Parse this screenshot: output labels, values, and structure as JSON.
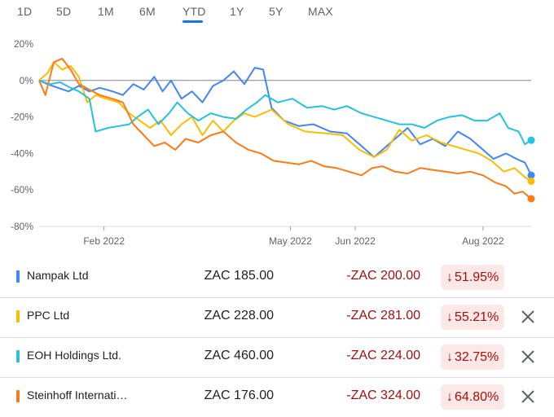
{
  "tabs": {
    "items": [
      "1D",
      "5D",
      "1M",
      "6M",
      "YTD",
      "1Y",
      "5Y",
      "MAX"
    ],
    "active": 4
  },
  "chart_data": {
    "type": "line",
    "x_range": [
      "2022-01-01",
      "2022-08-24"
    ],
    "ylim": [
      -80,
      20
    ],
    "y_ticks": [
      20,
      0,
      -20,
      -40,
      -60,
      -80
    ],
    "y_tick_labels": [
      "20%",
      "0%",
      "-20%",
      "-40%",
      "-60%",
      "-80%"
    ],
    "x_ticks": [
      "2022-02-01",
      "2022-05-01",
      "2022-06-01",
      "2022-08-01"
    ],
    "x_tick_labels": [
      "Feb 2022",
      "May 2022",
      "Jun 2022",
      "Aug 2022"
    ],
    "reference_line": 0,
    "grid": false,
    "series": [
      {
        "name": "Nampak Ltd",
        "color": "#4285f4",
        "points": [
          [
            "2022-01-01",
            0
          ],
          [
            "2022-01-05",
            -2
          ],
          [
            "2022-01-10",
            -4
          ],
          [
            "2022-01-15",
            -6
          ],
          [
            "2022-01-20",
            -3
          ],
          [
            "2022-01-25",
            -6
          ],
          [
            "2022-01-30",
            -4
          ],
          [
            "2022-02-05",
            -6
          ],
          [
            "2022-02-10",
            -8
          ],
          [
            "2022-02-15",
            -2
          ],
          [
            "2022-02-20",
            -5
          ],
          [
            "2022-02-25",
            2
          ],
          [
            "2022-03-01",
            -6
          ],
          [
            "2022-03-05",
            0
          ],
          [
            "2022-03-10",
            -10
          ],
          [
            "2022-03-15",
            -6
          ],
          [
            "2022-03-20",
            -12
          ],
          [
            "2022-03-25",
            -3
          ],
          [
            "2022-03-30",
            0
          ],
          [
            "2022-04-04",
            5
          ],
          [
            "2022-04-09",
            -2
          ],
          [
            "2022-04-14",
            7
          ],
          [
            "2022-04-18",
            6
          ],
          [
            "2022-04-22",
            -15
          ],
          [
            "2022-04-28",
            -22
          ],
          [
            "2022-05-05",
            -25
          ],
          [
            "2022-05-12",
            -24
          ],
          [
            "2022-05-20",
            -28
          ],
          [
            "2022-05-28",
            -29
          ],
          [
            "2022-06-04",
            -36
          ],
          [
            "2022-06-10",
            -42
          ],
          [
            "2022-06-16",
            -36
          ],
          [
            "2022-06-22",
            -30
          ],
          [
            "2022-06-26",
            -26
          ],
          [
            "2022-07-02",
            -35
          ],
          [
            "2022-07-08",
            -32
          ],
          [
            "2022-07-14",
            -36
          ],
          [
            "2022-07-20",
            -28
          ],
          [
            "2022-07-26",
            -32
          ],
          [
            "2022-08-01",
            -38
          ],
          [
            "2022-08-06",
            -43
          ],
          [
            "2022-08-12",
            -40
          ],
          [
            "2022-08-17",
            -43
          ],
          [
            "2022-08-21",
            -45
          ],
          [
            "2022-08-24",
            -51.95
          ]
        ]
      },
      {
        "name": "PPC Ltd",
        "color": "#fbbc04",
        "points": [
          [
            "2022-01-01",
            0
          ],
          [
            "2022-01-05",
            4
          ],
          [
            "2022-01-08",
            10
          ],
          [
            "2022-01-12",
            6
          ],
          [
            "2022-01-16",
            8
          ],
          [
            "2022-01-20",
            2
          ],
          [
            "2022-01-24",
            -12
          ],
          [
            "2022-01-28",
            -8
          ],
          [
            "2022-02-02",
            -10
          ],
          [
            "2022-02-08",
            -12
          ],
          [
            "2022-02-13",
            -18
          ],
          [
            "2022-02-18",
            -22
          ],
          [
            "2022-02-23",
            -26
          ],
          [
            "2022-02-28",
            -22
          ],
          [
            "2022-03-05",
            -30
          ],
          [
            "2022-03-10",
            -24
          ],
          [
            "2022-03-15",
            -20
          ],
          [
            "2022-03-20",
            -30
          ],
          [
            "2022-03-25",
            -22
          ],
          [
            "2022-03-30",
            -28
          ],
          [
            "2022-04-04",
            -22
          ],
          [
            "2022-04-09",
            -18
          ],
          [
            "2022-04-14",
            -20
          ],
          [
            "2022-04-22",
            -16
          ],
          [
            "2022-04-30",
            -24
          ],
          [
            "2022-05-08",
            -28
          ],
          [
            "2022-05-18",
            -29
          ],
          [
            "2022-05-26",
            -30
          ],
          [
            "2022-06-03",
            -38
          ],
          [
            "2022-06-10",
            -42
          ],
          [
            "2022-06-16",
            -38
          ],
          [
            "2022-06-22",
            -27
          ],
          [
            "2022-06-28",
            -33
          ],
          [
            "2022-07-05",
            -30
          ],
          [
            "2022-07-12",
            -34
          ],
          [
            "2022-07-18",
            -36
          ],
          [
            "2022-07-24",
            -38
          ],
          [
            "2022-07-30",
            -40
          ],
          [
            "2022-08-05",
            -44
          ],
          [
            "2022-08-11",
            -50
          ],
          [
            "2022-08-16",
            -48
          ],
          [
            "2022-08-21",
            -53
          ],
          [
            "2022-08-24",
            -55.21
          ]
        ]
      },
      {
        "name": "EOH Holdings Ltd.",
        "color": "#24c1e0",
        "points": [
          [
            "2022-01-01",
            0
          ],
          [
            "2022-01-06",
            -2
          ],
          [
            "2022-01-11",
            -1
          ],
          [
            "2022-01-16",
            -4
          ],
          [
            "2022-01-20",
            -6
          ],
          [
            "2022-01-25",
            -10
          ],
          [
            "2022-01-28",
            -28
          ],
          [
            "2022-02-03",
            -26
          ],
          [
            "2022-02-08",
            -25
          ],
          [
            "2022-02-13",
            -24
          ],
          [
            "2022-02-17",
            -20
          ],
          [
            "2022-02-22",
            -16
          ],
          [
            "2022-02-27",
            -24
          ],
          [
            "2022-03-04",
            -18
          ],
          [
            "2022-03-08",
            -12
          ],
          [
            "2022-03-13",
            -18
          ],
          [
            "2022-03-18",
            -22
          ],
          [
            "2022-03-24",
            -18
          ],
          [
            "2022-03-30",
            -20
          ],
          [
            "2022-04-05",
            -21
          ],
          [
            "2022-04-10",
            -16
          ],
          [
            "2022-04-15",
            -12
          ],
          [
            "2022-04-19",
            -8
          ],
          [
            "2022-04-25",
            -12
          ],
          [
            "2022-05-02",
            -10
          ],
          [
            "2022-05-09",
            -15
          ],
          [
            "2022-05-16",
            -14
          ],
          [
            "2022-05-22",
            -16
          ],
          [
            "2022-05-28",
            -14
          ],
          [
            "2022-06-04",
            -18
          ],
          [
            "2022-06-10",
            -20
          ],
          [
            "2022-06-16",
            -22
          ],
          [
            "2022-06-22",
            -24
          ],
          [
            "2022-06-28",
            -24
          ],
          [
            "2022-07-04",
            -26
          ],
          [
            "2022-07-10",
            -22
          ],
          [
            "2022-07-16",
            -20
          ],
          [
            "2022-07-22",
            -19
          ],
          [
            "2022-07-28",
            -22
          ],
          [
            "2022-08-03",
            -22
          ],
          [
            "2022-08-09",
            -18
          ],
          [
            "2022-08-13",
            -26
          ],
          [
            "2022-08-18",
            -28
          ],
          [
            "2022-08-21",
            -35
          ],
          [
            "2022-08-24",
            -32.75
          ]
        ]
      },
      {
        "name": "Steinhoff Internati…",
        "color": "#fa7b17",
        "points": [
          [
            "2022-01-01",
            0
          ],
          [
            "2022-01-04",
            -8
          ],
          [
            "2022-01-08",
            10
          ],
          [
            "2022-01-12",
            12
          ],
          [
            "2022-01-16",
            6
          ],
          [
            "2022-01-20",
            -2
          ],
          [
            "2022-01-25",
            -5
          ],
          [
            "2022-01-30",
            -8
          ],
          [
            "2022-02-05",
            -10
          ],
          [
            "2022-02-10",
            -12
          ],
          [
            "2022-02-15",
            -24
          ],
          [
            "2022-02-20",
            -30
          ],
          [
            "2022-02-25",
            -36
          ],
          [
            "2022-03-02",
            -34
          ],
          [
            "2022-03-07",
            -38
          ],
          [
            "2022-03-12",
            -32
          ],
          [
            "2022-03-18",
            -34
          ],
          [
            "2022-03-24",
            -30
          ],
          [
            "2022-03-30",
            -28
          ],
          [
            "2022-04-05",
            -34
          ],
          [
            "2022-04-11",
            -38
          ],
          [
            "2022-04-17",
            -40
          ],
          [
            "2022-04-23",
            -44
          ],
          [
            "2022-04-29",
            -45
          ],
          [
            "2022-05-05",
            -46
          ],
          [
            "2022-05-11",
            -44
          ],
          [
            "2022-05-17",
            -47
          ],
          [
            "2022-05-23",
            -48
          ],
          [
            "2022-05-29",
            -50
          ],
          [
            "2022-06-04",
            -52
          ],
          [
            "2022-06-09",
            -48
          ],
          [
            "2022-06-14",
            -47
          ],
          [
            "2022-06-20",
            -50
          ],
          [
            "2022-06-26",
            -51
          ],
          [
            "2022-07-02",
            -48
          ],
          [
            "2022-07-08",
            -49
          ],
          [
            "2022-07-14",
            -50
          ],
          [
            "2022-07-20",
            -51
          ],
          [
            "2022-07-26",
            -50
          ],
          [
            "2022-08-01",
            -52
          ],
          [
            "2022-08-07",
            -56
          ],
          [
            "2022-08-12",
            -58
          ],
          [
            "2022-08-16",
            -62
          ],
          [
            "2022-08-20",
            -61
          ],
          [
            "2022-08-24",
            -64.8
          ]
        ]
      }
    ]
  },
  "rows": [
    {
      "name": "Nampak Ltd",
      "color": "#4285f4",
      "price": "ZAC 185.00",
      "change": "-ZAC 200.00",
      "percent": "51.95%",
      "removable": false
    },
    {
      "name": "PPC Ltd",
      "color": "#fbbc04",
      "price": "ZAC 228.00",
      "change": "-ZAC 281.00",
      "percent": "55.21%",
      "removable": true
    },
    {
      "name": "EOH Holdings Ltd.",
      "color": "#24c1e0",
      "price": "ZAC 460.00",
      "change": "-ZAC 224.00",
      "percent": "32.75%",
      "removable": true
    },
    {
      "name": "Steinhoff Internati…",
      "color": "#fa7b17",
      "price": "ZAC 176.00",
      "change": "-ZAC 324.00",
      "percent": "64.80%",
      "removable": true
    }
  ]
}
